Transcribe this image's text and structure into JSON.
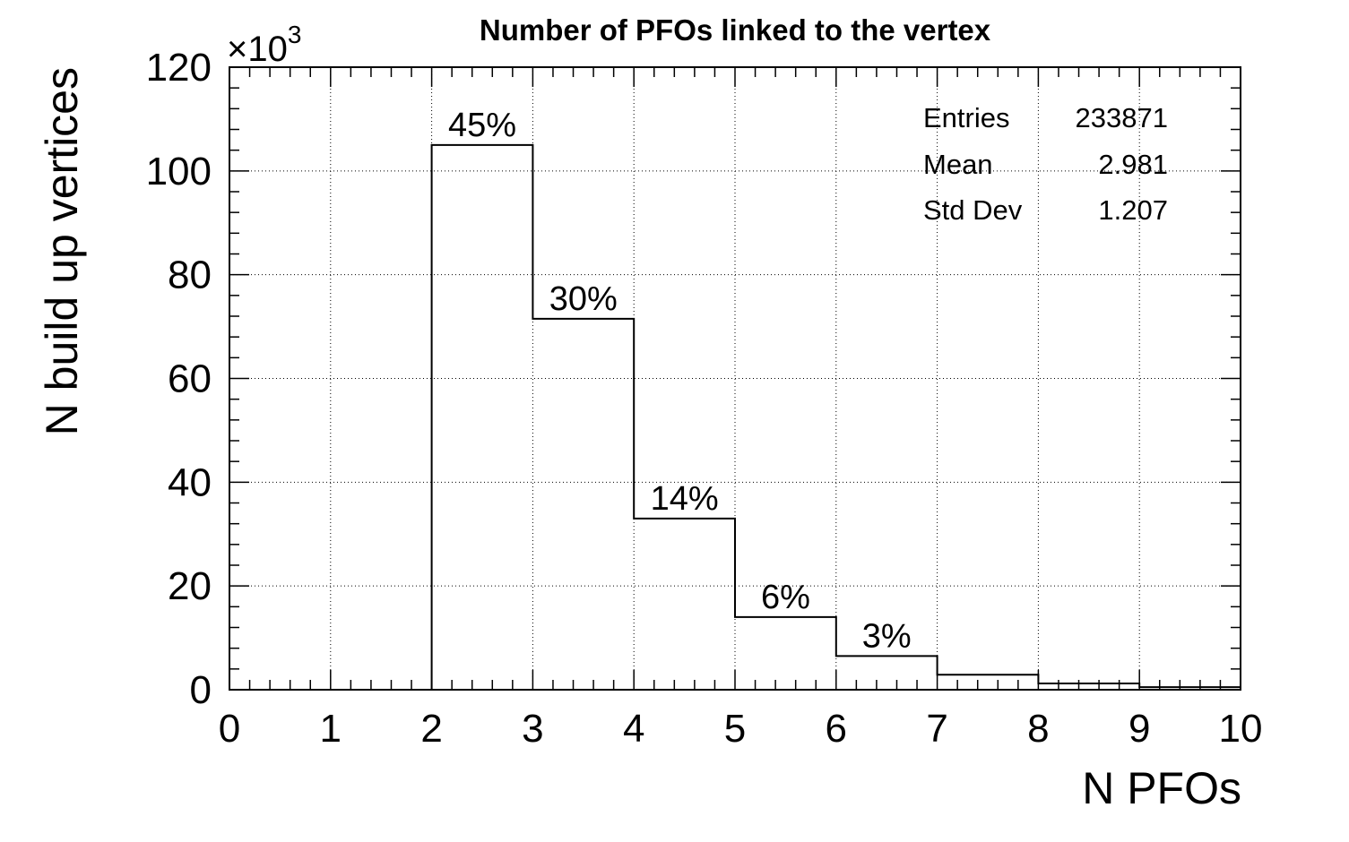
{
  "chart_data": {
    "type": "bar",
    "title": "Number of PFOs linked to the vertex",
    "xlabel": "N PFOs",
    "ylabel": "N build up vertices",
    "y_multiplier": "×10",
    "y_multiplier_exponent": "3",
    "xlim": [
      0,
      10
    ],
    "ylim": [
      0,
      120
    ],
    "grid": true,
    "x_ticks": [
      0,
      1,
      2,
      3,
      4,
      5,
      6,
      7,
      8,
      9,
      10
    ],
    "y_ticks": [
      0,
      20,
      40,
      60,
      80,
      100,
      120
    ],
    "bins": [
      {
        "x_low": 0,
        "x_high": 1,
        "value": 0
      },
      {
        "x_low": 1,
        "x_high": 2,
        "value": 0
      },
      {
        "x_low": 2,
        "x_high": 3,
        "value": 105,
        "label": "45%"
      },
      {
        "x_low": 3,
        "x_high": 4,
        "value": 71.5,
        "label": "30%"
      },
      {
        "x_low": 4,
        "x_high": 5,
        "value": 33,
        "label": "14%"
      },
      {
        "x_low": 5,
        "x_high": 6,
        "value": 14,
        "label": "6%"
      },
      {
        "x_low": 6,
        "x_high": 7,
        "value": 6.5,
        "label": "3%"
      },
      {
        "x_low": 7,
        "x_high": 8,
        "value": 2.9
      },
      {
        "x_low": 8,
        "x_high": 9,
        "value": 1.2
      },
      {
        "x_low": 9,
        "x_high": 10,
        "value": 0.5
      }
    ],
    "stats": [
      {
        "name": "Entries",
        "value": "233871"
      },
      {
        "name": "Mean",
        "value": "2.981"
      },
      {
        "name": "Std Dev",
        "value": "1.207"
      }
    ],
    "legend_position": "top-right"
  }
}
